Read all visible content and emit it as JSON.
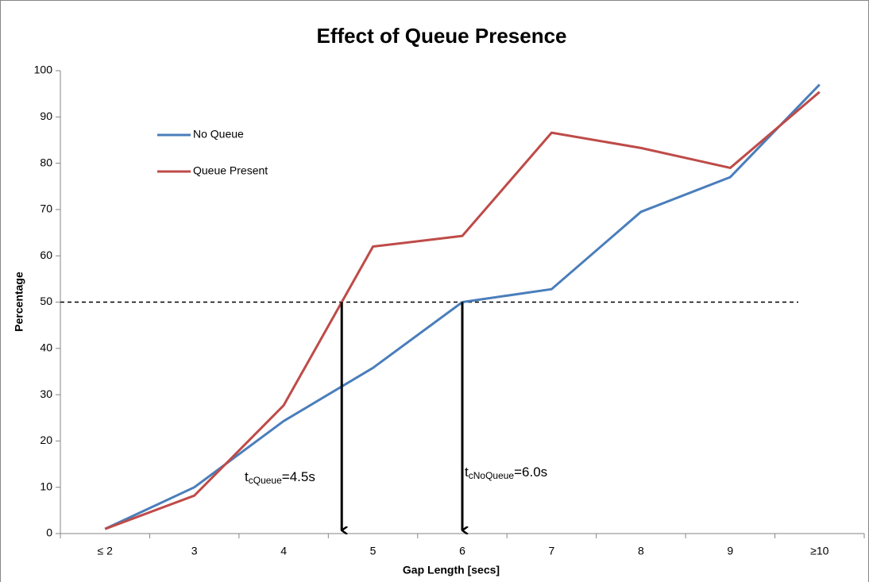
{
  "chart_data": {
    "type": "line",
    "title": "Effect of Queue Presence",
    "x_label": "Gap Length [secs]",
    "y_label": "Percentage",
    "categories": [
      "≤ 2",
      "3",
      "4",
      "5",
      "6",
      "7",
      "8",
      "9",
      "≥10"
    ],
    "series": [
      {
        "name": "No Queue",
        "color": "#4a7ebb",
        "values": [
          1,
          10,
          24.3,
          35.8,
          50,
          52.8,
          69.5,
          77,
          97
        ]
      },
      {
        "name": "Queue Present",
        "color": "#be4b48",
        "values": [
          1,
          8.2,
          27.7,
          62,
          64.3,
          86.6,
          83.3,
          79,
          95.4
        ]
      }
    ],
    "ylim": [
      0,
      100
    ],
    "yticks": [
      0,
      10,
      20,
      30,
      40,
      50,
      60,
      70,
      80,
      90,
      100
    ],
    "grid": false,
    "legend": "upper left",
    "reference_line": 50,
    "annotations": [
      {
        "base": "t",
        "sub": "cQueue",
        "rest": "=4.5s"
      },
      {
        "base": "t",
        "sub": "cNoQueue",
        "rest": "=6.0s"
      }
    ]
  }
}
